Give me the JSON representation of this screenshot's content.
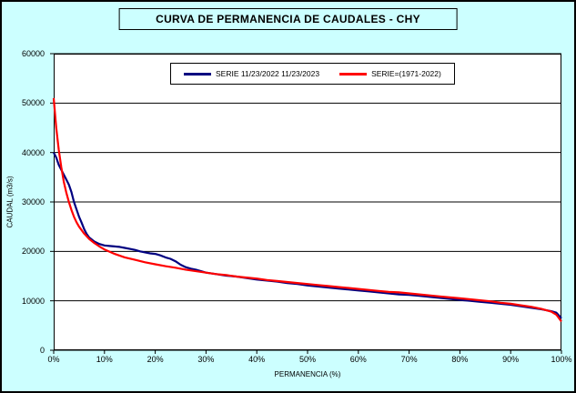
{
  "window": {
    "background_color": "#CCFFFF",
    "border_color": "#000000",
    "plot_background_color": "#FFFFFF"
  },
  "chart_data": {
    "type": "line",
    "title": "CURVA DE PERMANENCIA DE CAUDALES - CHY",
    "xlabel": "PERMANENCIA (%)",
    "ylabel": "CAUDAL (m3/s)",
    "xlim": [
      0,
      100
    ],
    "ylim": [
      0,
      60000
    ],
    "x_tick_values": [
      0,
      10,
      20,
      30,
      40,
      50,
      60,
      70,
      80,
      90,
      100
    ],
    "x_tick_labels": [
      "0%",
      "10%",
      "20%",
      "30%",
      "40%",
      "50%",
      "60%",
      "70%",
      "80%",
      "90%",
      "100%"
    ],
    "y_tick_values": [
      0,
      10000,
      20000,
      30000,
      40000,
      50000,
      60000
    ],
    "y_tick_labels": [
      "0",
      "10000",
      "20000",
      "30000",
      "40000",
      "50000",
      "60000"
    ],
    "grid": "horizontal-only",
    "legend_position": "top-center-inside",
    "series": [
      {
        "name": "SERIE 11/23/2022 11/23/2023",
        "color": "#000080",
        "points": [
          [
            0,
            40000
          ],
          [
            0.5,
            39000
          ],
          [
            1,
            37500
          ],
          [
            1.5,
            36500
          ],
          [
            2,
            35500
          ],
          [
            2.5,
            34500
          ],
          [
            3,
            33500
          ],
          [
            3.5,
            32000
          ],
          [
            4,
            30000
          ],
          [
            4.5,
            28500
          ],
          [
            5,
            27000
          ],
          [
            5.5,
            25800
          ],
          [
            6,
            24500
          ],
          [
            6.5,
            23500
          ],
          [
            7,
            22800
          ],
          [
            8,
            22000
          ],
          [
            9,
            21500
          ],
          [
            10,
            21200
          ],
          [
            11,
            21100
          ],
          [
            12,
            21000
          ],
          [
            13,
            20900
          ],
          [
            14,
            20700
          ],
          [
            15,
            20500
          ],
          [
            16,
            20300
          ],
          [
            17,
            20000
          ],
          [
            18,
            19800
          ],
          [
            19,
            19600
          ],
          [
            20,
            19500
          ],
          [
            21,
            19200
          ],
          [
            22,
            18800
          ],
          [
            23,
            18500
          ],
          [
            24,
            18000
          ],
          [
            25,
            17300
          ],
          [
            26,
            16800
          ],
          [
            27,
            16500
          ],
          [
            28,
            16300
          ],
          [
            29,
            16000
          ],
          [
            30,
            15700
          ],
          [
            32,
            15400
          ],
          [
            34,
            15100
          ],
          [
            36,
            14900
          ],
          [
            38,
            14600
          ],
          [
            40,
            14300
          ],
          [
            42,
            14100
          ],
          [
            44,
            13900
          ],
          [
            46,
            13600
          ],
          [
            48,
            13400
          ],
          [
            50,
            13100
          ],
          [
            52,
            12900
          ],
          [
            54,
            12700
          ],
          [
            56,
            12500
          ],
          [
            58,
            12300
          ],
          [
            60,
            12100
          ],
          [
            62,
            11900
          ],
          [
            64,
            11700
          ],
          [
            66,
            11500
          ],
          [
            68,
            11300
          ],
          [
            70,
            11200
          ],
          [
            72,
            11000
          ],
          [
            74,
            10800
          ],
          [
            76,
            10600
          ],
          [
            78,
            10400
          ],
          [
            80,
            10200
          ],
          [
            82,
            10000
          ],
          [
            84,
            9800
          ],
          [
            86,
            9600
          ],
          [
            88,
            9400
          ],
          [
            90,
            9200
          ],
          [
            92,
            8900
          ],
          [
            94,
            8600
          ],
          [
            96,
            8300
          ],
          [
            98,
            7900
          ],
          [
            99,
            7600
          ],
          [
            100,
            6500
          ]
        ]
      },
      {
        "name": "SERIE=(1971-2022)",
        "color": "#FF0000",
        "points": [
          [
            0,
            51000
          ],
          [
            0.5,
            45000
          ],
          [
            1,
            40500
          ],
          [
            1.5,
            37000
          ],
          [
            2,
            34000
          ],
          [
            2.5,
            31800
          ],
          [
            3,
            30000
          ],
          [
            3.5,
            28400
          ],
          [
            4,
            27000
          ],
          [
            4.5,
            25900
          ],
          [
            5,
            25000
          ],
          [
            6,
            23600
          ],
          [
            7,
            22500
          ],
          [
            8,
            21700
          ],
          [
            9,
            21000
          ],
          [
            10,
            20400
          ],
          [
            12,
            19500
          ],
          [
            14,
            18800
          ],
          [
            16,
            18300
          ],
          [
            18,
            17800
          ],
          [
            20,
            17400
          ],
          [
            22,
            17000
          ],
          [
            24,
            16700
          ],
          [
            26,
            16300
          ],
          [
            28,
            16000
          ],
          [
            30,
            15700
          ],
          [
            32,
            15400
          ],
          [
            34,
            15200
          ],
          [
            36,
            14900
          ],
          [
            38,
            14700
          ],
          [
            40,
            14500
          ],
          [
            42,
            14200
          ],
          [
            44,
            14000
          ],
          [
            46,
            13800
          ],
          [
            48,
            13600
          ],
          [
            50,
            13400
          ],
          [
            52,
            13200
          ],
          [
            54,
            13000
          ],
          [
            56,
            12800
          ],
          [
            58,
            12600
          ],
          [
            60,
            12400
          ],
          [
            62,
            12200
          ],
          [
            64,
            12000
          ],
          [
            66,
            11800
          ],
          [
            68,
            11700
          ],
          [
            70,
            11500
          ],
          [
            72,
            11300
          ],
          [
            74,
            11100
          ],
          [
            76,
            10900
          ],
          [
            78,
            10700
          ],
          [
            80,
            10500
          ],
          [
            82,
            10300
          ],
          [
            84,
            10100
          ],
          [
            86,
            9900
          ],
          [
            88,
            9600
          ],
          [
            90,
            9400
          ],
          [
            92,
            9100
          ],
          [
            94,
            8800
          ],
          [
            96,
            8400
          ],
          [
            98,
            7800
          ],
          [
            99,
            7200
          ],
          [
            100,
            5800
          ]
        ]
      }
    ]
  }
}
